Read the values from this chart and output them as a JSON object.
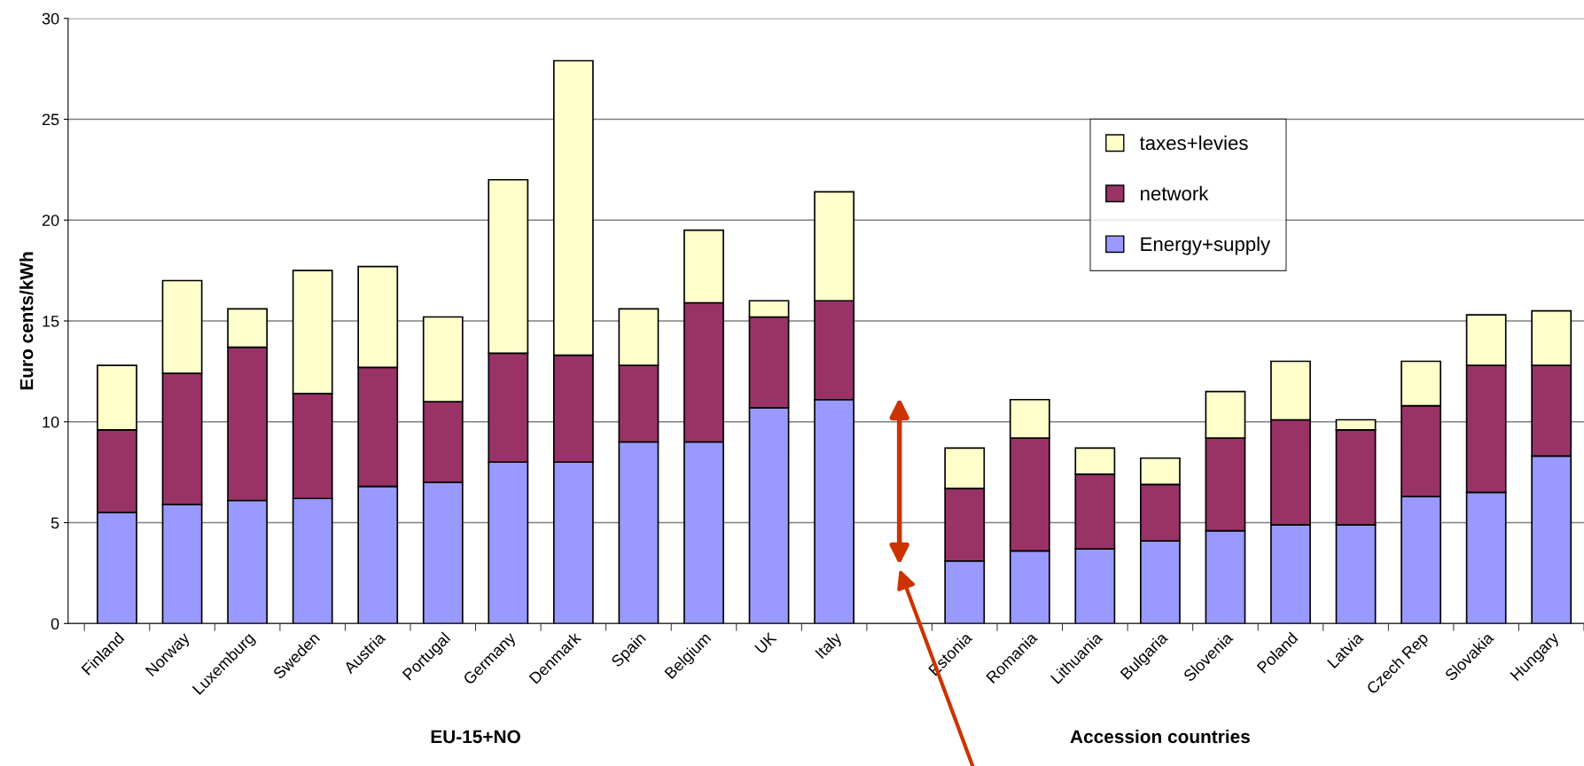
{
  "chart_data": {
    "type": "bar",
    "stacked": true,
    "ylabel": "Euro cents/kWh",
    "categories": [
      "Finland",
      "Norway",
      "Luxemburg",
      "Sweden",
      "Austria",
      "Portugal",
      "Germany",
      "Denmark",
      "Spain",
      "Belgium",
      "UK",
      "Italy",
      null,
      "Estonia",
      "Romania",
      "Lithuania",
      "Bulgaria",
      "Slovenia",
      "Poland",
      "Latvia",
      "Czech Rep",
      "Slovakia",
      "Hungary"
    ],
    "series": [
      {
        "name": "Energy+supply",
        "color": "#9999ff",
        "values": [
          5.5,
          5.9,
          6.1,
          6.2,
          6.8,
          7.0,
          8.0,
          8.0,
          9.0,
          9.0,
          10.7,
          11.1,
          null,
          3.1,
          3.6,
          3.7,
          4.1,
          4.6,
          4.9,
          4.9,
          6.3,
          6.5,
          8.3
        ]
      },
      {
        "name": "network",
        "color": "#993366",
        "values": [
          4.1,
          6.5,
          7.6,
          5.2,
          5.9,
          4.0,
          5.4,
          5.3,
          3.8,
          6.9,
          4.5,
          4.9,
          null,
          3.6,
          5.6,
          3.7,
          2.8,
          4.6,
          5.2,
          4.7,
          4.5,
          6.3,
          4.5
        ]
      },
      {
        "name": "taxes+levies",
        "color": "#ffffcc",
        "values": [
          3.2,
          4.6,
          1.9,
          6.1,
          5.0,
          4.2,
          8.6,
          14.6,
          2.8,
          3.6,
          0.8,
          5.4,
          null,
          2.0,
          1.9,
          1.3,
          1.3,
          2.3,
          2.9,
          0.5,
          2.2,
          2.5,
          2.7
        ]
      }
    ],
    "ylim": [
      0,
      30
    ],
    "yticks": [
      0,
      5,
      10,
      15,
      20,
      25,
      30
    ],
    "grid": "y",
    "legend": "top right",
    "annotations": [
      "EU-15+NO",
      "Accession countries"
    ]
  }
}
